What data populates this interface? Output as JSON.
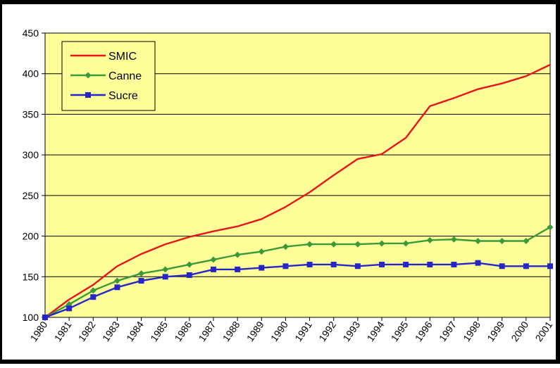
{
  "chart_data": {
    "type": "line",
    "title": "",
    "xlabel": "",
    "ylabel": "",
    "ylim": [
      100,
      450
    ],
    "yticks": [
      "100",
      "150",
      "200",
      "250",
      "300",
      "350",
      "400",
      "450"
    ],
    "grid": true,
    "legend_position": "top-left",
    "categories": [
      "1980",
      "1981",
      "1982",
      "1983",
      "1984",
      "1985",
      "1986",
      "1987",
      "1988",
      "1989",
      "1990",
      "1991",
      "1992",
      "1993",
      "1994",
      "1995",
      "1996",
      "1997",
      "1998",
      "1999",
      "2000",
      "2001"
    ],
    "series": [
      {
        "name": "SMIC",
        "color": "#e8141a",
        "marker": "none",
        "values": [
          100,
          122,
          140,
          163,
          178,
          190,
          199,
          206,
          212,
          221,
          236,
          254,
          275,
          295,
          301,
          321,
          360,
          370,
          381,
          388,
          397,
          411
        ]
      },
      {
        "name": "Canne",
        "color": "#3a9a3a",
        "marker": "diamond",
        "values": [
          100,
          116,
          133,
          145,
          154,
          159,
          165,
          171,
          177,
          181,
          187,
          190,
          190,
          190,
          191,
          191,
          195,
          196,
          194,
          194,
          194,
          211
        ]
      },
      {
        "name": "Sucre",
        "color": "#2626c8",
        "marker": "square",
        "values": [
          100,
          111,
          125,
          137,
          145,
          150,
          152,
          159,
          159,
          161,
          163,
          165,
          165,
          163,
          165,
          165,
          165,
          165,
          167,
          163,
          163,
          163
        ]
      }
    ]
  },
  "colors": {
    "plot_background": "#ffff99",
    "gridline": "#000000"
  }
}
